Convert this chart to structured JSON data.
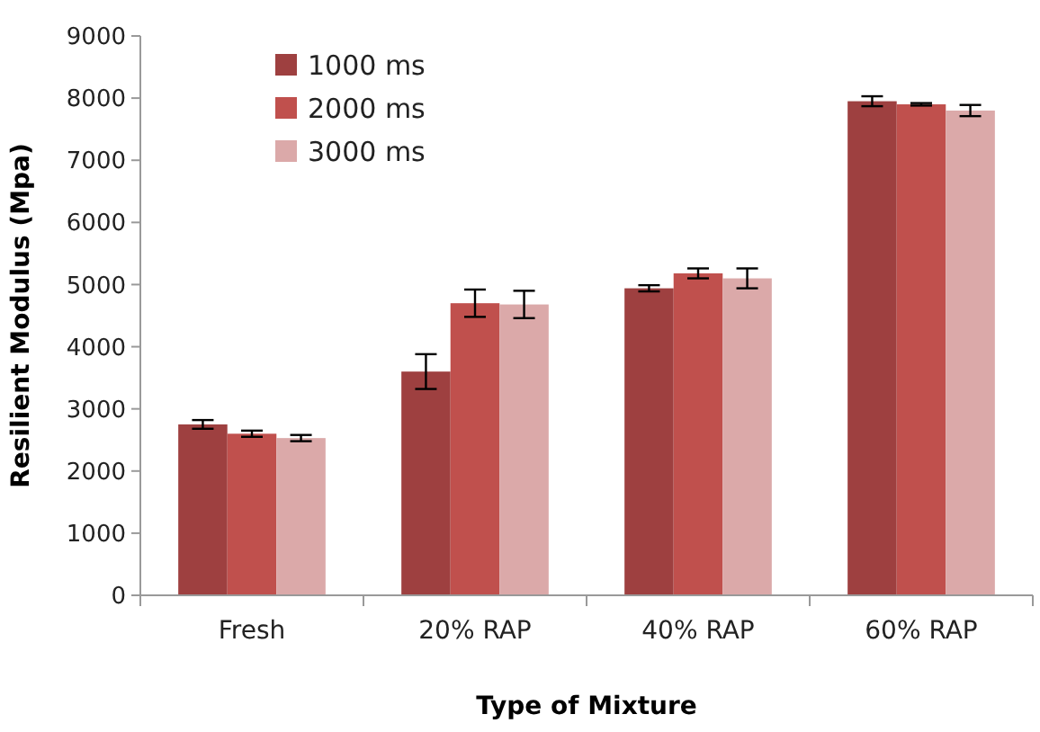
{
  "chart_data": {
    "type": "bar",
    "xlabel": "Type of Mixture",
    "ylabel": "Resilient Modulus (Mpa)",
    "categories": [
      "Fresh",
      "20% RAP",
      "40% RAP",
      "60% RAP"
    ],
    "series": [
      {
        "name": "1000 ms",
        "color": "#9e4040",
        "values": [
          2750,
          3600,
          4940,
          7950
        ],
        "errors": [
          70,
          280,
          50,
          80
        ]
      },
      {
        "name": "2000 ms",
        "color": "#c0504d",
        "values": [
          2600,
          4700,
          5180,
          7900
        ],
        "errors": [
          50,
          220,
          80,
          20
        ]
      },
      {
        "name": "3000 ms",
        "color": "#dba9a9",
        "values": [
          2530,
          4680,
          5100,
          7800
        ],
        "errors": [
          50,
          220,
          160,
          90
        ]
      }
    ],
    "ylim": [
      0,
      9000
    ],
    "yticks": [
      0,
      1000,
      2000,
      3000,
      4000,
      5000,
      6000,
      7000,
      8000,
      9000
    ],
    "grid": false,
    "legend": "top left"
  }
}
